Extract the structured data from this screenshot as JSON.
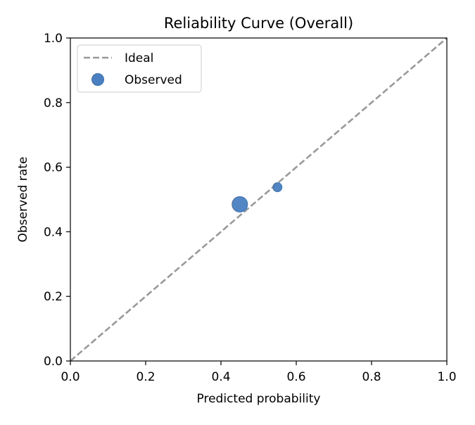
{
  "chart_data": {
    "type": "scatter",
    "title": "Reliability Curve (Overall)",
    "xlabel": "Predicted probability",
    "ylabel": "Observed rate",
    "xlim": [
      0.0,
      1.0
    ],
    "ylim": [
      0.0,
      1.0
    ],
    "xticks": [
      0.0,
      0.2,
      0.4,
      0.6,
      0.8,
      1.0
    ],
    "yticks": [
      0.0,
      0.2,
      0.4,
      0.6,
      0.8,
      1.0
    ],
    "xtick_labels": [
      "0.0",
      "0.2",
      "0.4",
      "0.6",
      "0.8",
      "1.0"
    ],
    "ytick_labels": [
      "0.0",
      "0.2",
      "0.4",
      "0.6",
      "0.8",
      "1.0"
    ],
    "grid": false,
    "legend_position": "top-left",
    "series": [
      {
        "name": "Ideal",
        "kind": "line",
        "style": "dashed",
        "color": "#999999",
        "x": [
          0.0,
          1.0
        ],
        "y": [
          0.0,
          1.0
        ]
      },
      {
        "name": "Observed",
        "kind": "scatter",
        "color": "#4a7fc1",
        "points": [
          {
            "x": 0.45,
            "y": 0.485,
            "relative_size": 1.0
          },
          {
            "x": 0.55,
            "y": 0.538,
            "relative_size": 0.12
          }
        ]
      }
    ]
  }
}
